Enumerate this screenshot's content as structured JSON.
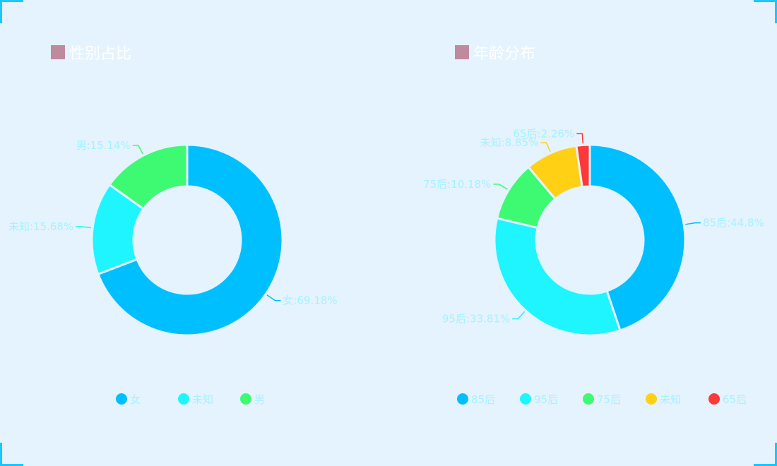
{
  "chart_data": [
    {
      "type": "pie",
      "donut": true,
      "title": "性别占比",
      "slices": [
        {
          "name": "女",
          "value": 69.18,
          "label": "女:69.18%",
          "color": "#00bfff"
        },
        {
          "name": "未知",
          "value": 15.68,
          "label": "未知:15.68%",
          "color": "#1ff5ff"
        },
        {
          "name": "男",
          "value": 15.14,
          "label": "男:15.14%",
          "color": "#3dfa72"
        }
      ],
      "legend": [
        "女",
        "未知",
        "男"
      ],
      "legend_position": "bottom"
    },
    {
      "type": "pie",
      "donut": true,
      "title": "年龄分布",
      "slices": [
        {
          "name": "85后",
          "value": 44.8,
          "label": "85后:44.8%",
          "color": "#00bfff"
        },
        {
          "name": "95后",
          "value": 33.81,
          "label": "95后:33.81%",
          "color": "#1ff5ff"
        },
        {
          "name": "75后",
          "value": 10.18,
          "label": "75后:10.18%",
          "color": "#3dfa72"
        },
        {
          "name": "未知",
          "value": 8.85,
          "label": "未知:8.85%",
          "color": "#ffd014"
        },
        {
          "name": "65后",
          "value": 2.26,
          "label": "65后:2.26%",
          "color": "#ff3838"
        }
      ],
      "legend": [
        "85后",
        "95后",
        "75后",
        "未知",
        "65后"
      ],
      "legend_position": "bottom"
    }
  ]
}
